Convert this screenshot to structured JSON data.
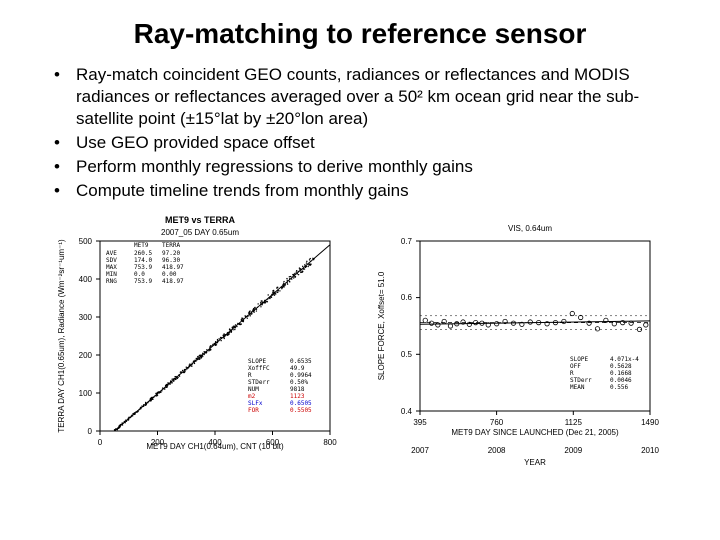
{
  "title": "Ray-matching to reference sensor",
  "bullets": [
    "Ray-match coincident GEO counts, radiances or reflectances and MODIS radiances or reflectances averaged over a 50² km ocean grid near the sub-satellite point (±15°lat by ±20°lon area)",
    "Use GEO provided space offset",
    "Perform monthly regressions to derive monthly gains",
    "Compute timeline trends from monthly gains"
  ],
  "scatter_chart": {
    "type": "scatter",
    "title": "MET9 vs TERRA",
    "subtitle": "2007_05  DAY  0.65um",
    "xlabel": "MET9 DAY CH1(0.64um), CNT (10 bit)",
    "ylabel": "TERRA DAY CH1(0.65um), Radiance (Wm⁻²sr⁻¹um⁻¹)",
    "xlim": [
      0,
      800
    ],
    "ylim": [
      0,
      500
    ],
    "xticks": [
      0,
      200,
      400,
      600,
      800
    ],
    "yticks": [
      0,
      100,
      200,
      300,
      400,
      500
    ],
    "plot_bg": "#ffffff",
    "axis_color": "#000000",
    "point_color": "#000000",
    "line_color": "#000000",
    "slope": 0.6535,
    "legend_top": {
      "headers": [
        "",
        "MET9",
        "TERRA"
      ],
      "rows": [
        [
          "AVE",
          "260.5",
          "97.20"
        ],
        [
          "SDV",
          "174.0",
          "96.30"
        ],
        [
          "MAX",
          "753.9",
          "418.97"
        ],
        [
          "MIN",
          "0.0",
          "0.00"
        ],
        [
          "RNG",
          "753.9",
          "418.97"
        ]
      ]
    },
    "legend_bottom": [
      {
        "label": "SLOPE",
        "value": "0.6535",
        "color": "#000000"
      },
      {
        "label": "XoffFC",
        "value": "49.9",
        "color": "#000000"
      },
      {
        "label": "R",
        "value": "0.9964",
        "color": "#000000"
      },
      {
        "label": "STDerr",
        "value": "0.50%",
        "color": "#000000"
      },
      {
        "label": "NUM",
        "value": "9818",
        "color": "#000000"
      },
      {
        "label": "m2",
        "value": "1123",
        "color": "#cc0000"
      },
      {
        "label": "SLFx",
        "value": "0.6505",
        "color": "#0000cc"
      },
      {
        "label": "FOR",
        "value": "0.5505",
        "color": "#cc0000"
      }
    ]
  },
  "trend_chart": {
    "type": "line",
    "title": "VIS, 0.64um",
    "xlabel_top": "MET9 DAY SINCE LAUNCHED (Dec 21, 2005)",
    "xlabel_bottom": "YEAR",
    "ylabel": "SLOPE FORCE, Xoffset= 51.0",
    "xlim": [
      395,
      1490
    ],
    "ylim": [
      0.4,
      0.7
    ],
    "xticks_top": [
      395,
      760,
      1125,
      1490
    ],
    "xticks_bottom_years": [
      2007,
      2008,
      2009,
      2010
    ],
    "yticks": [
      0.4,
      0.5,
      0.6,
      0.7
    ],
    "plot_bg": "#ffffff",
    "axis_color": "#000000",
    "marker_color": "#000000",
    "marker_style": "open-circle",
    "fit_line_color": "#000000",
    "mean_line_style": "dashed",
    "data_mean": 0.556,
    "legend": [
      {
        "label": "SLOPE",
        "value": "4.071x-4"
      },
      {
        "label": "OFF",
        "value": "0.5628"
      },
      {
        "label": "R",
        "value": "0.1668"
      },
      {
        "label": "STDerr",
        "value": "0.0046"
      },
      {
        "label": "MEAN",
        "value": "0.556"
      }
    ],
    "points": [
      {
        "x": 420,
        "y": 0.56
      },
      {
        "x": 450,
        "y": 0.555
      },
      {
        "x": 480,
        "y": 0.552
      },
      {
        "x": 510,
        "y": 0.558
      },
      {
        "x": 540,
        "y": 0.55
      },
      {
        "x": 570,
        "y": 0.554
      },
      {
        "x": 600,
        "y": 0.557
      },
      {
        "x": 630,
        "y": 0.553
      },
      {
        "x": 660,
        "y": 0.556
      },
      {
        "x": 690,
        "y": 0.555
      },
      {
        "x": 720,
        "y": 0.552
      },
      {
        "x": 760,
        "y": 0.554
      },
      {
        "x": 800,
        "y": 0.558
      },
      {
        "x": 840,
        "y": 0.555
      },
      {
        "x": 880,
        "y": 0.553
      },
      {
        "x": 920,
        "y": 0.557
      },
      {
        "x": 960,
        "y": 0.556
      },
      {
        "x": 1000,
        "y": 0.554
      },
      {
        "x": 1040,
        "y": 0.556
      },
      {
        "x": 1080,
        "y": 0.558
      },
      {
        "x": 1120,
        "y": 0.572
      },
      {
        "x": 1160,
        "y": 0.565
      },
      {
        "x": 1200,
        "y": 0.555
      },
      {
        "x": 1240,
        "y": 0.545
      },
      {
        "x": 1280,
        "y": 0.56
      },
      {
        "x": 1320,
        "y": 0.554
      },
      {
        "x": 1360,
        "y": 0.556
      },
      {
        "x": 1400,
        "y": 0.555
      },
      {
        "x": 1440,
        "y": 0.544
      },
      {
        "x": 1470,
        "y": 0.552
      }
    ]
  }
}
